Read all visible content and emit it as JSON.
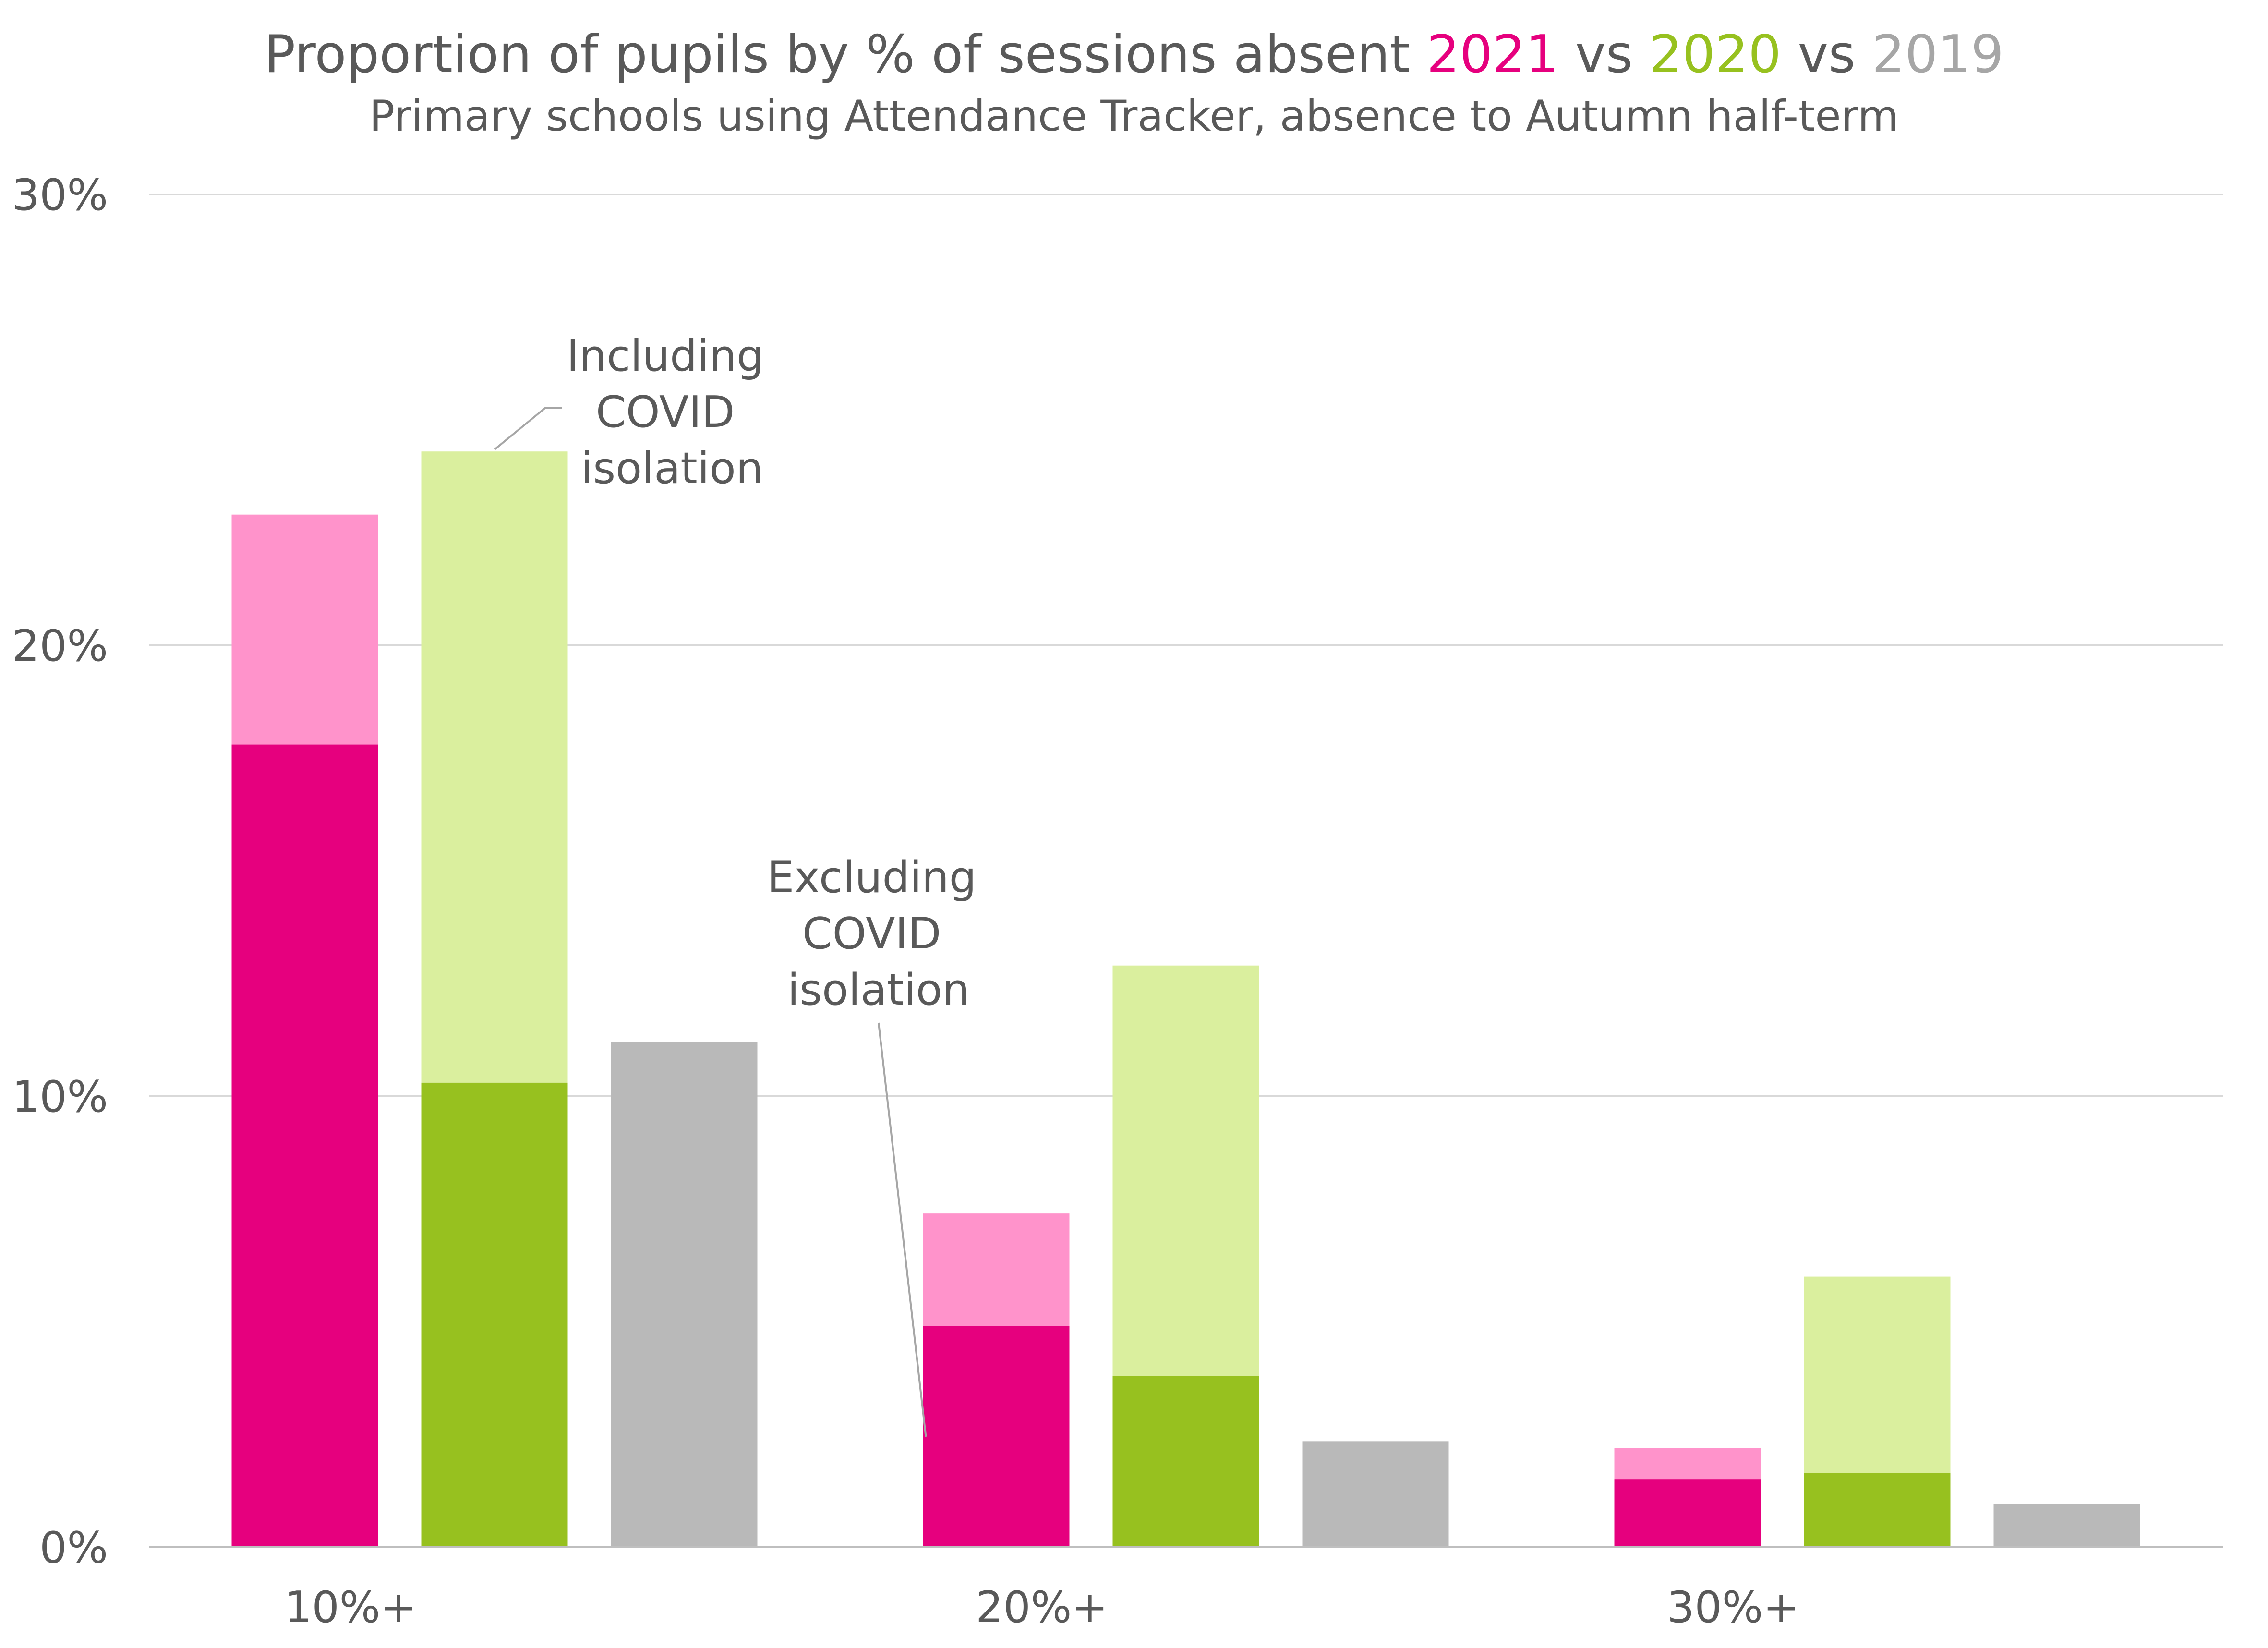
{
  "chart_data": {
    "type": "bar",
    "title": {
      "prefix": "Proportion of pupils by % of sessions absent",
      "year_2021": "2021",
      "sep1": "vs",
      "year_2020": "2020",
      "sep2": "vs",
      "year_2019": "2019"
    },
    "subtitle": "Primary schools using Attendance Tracker, absence to Autumn half-term",
    "categories": [
      "10%+",
      "20%+",
      "30%+"
    ],
    "ylim": [
      0,
      30
    ],
    "yticks": [
      0,
      10,
      20,
      30
    ],
    "ytick_labels": [
      "0%",
      "10%",
      "20%",
      "30%"
    ],
    "grid": true,
    "series": [
      {
        "name": "2021",
        "excluding_covid": [
          17.8,
          4.9,
          1.5
        ],
        "including_covid": [
          22.9,
          7.4,
          2.2
        ],
        "color_excluding": "#E6007E",
        "color_including": "#FF93CB"
      },
      {
        "name": "2020",
        "excluding_covid": [
          10.3,
          3.8,
          1.65
        ],
        "including_covid": [
          24.3,
          12.9,
          6.0
        ],
        "color_excluding": "#97C11F",
        "color_including": "#DAEF9E"
      },
      {
        "name": "2019",
        "excluding_covid": [
          11.2,
          2.35,
          0.95
        ],
        "including_covid": [
          11.2,
          2.35,
          0.95
        ],
        "color_excluding": "#B9B9B9",
        "color_including": "#B9B9B9"
      }
    ],
    "annotations": {
      "including": {
        "lines": [
          "Including",
          "COVID",
          "isolation"
        ]
      },
      "excluding": {
        "lines": [
          "Excluding",
          "COVID",
          "isolation"
        ]
      }
    },
    "colors": {
      "title_text": "#595959",
      "axis_text": "#595959",
      "grid": "#D9D9D9",
      "axis_line": "#BFBFBF",
      "leader_line": "#A6A6A6"
    }
  }
}
